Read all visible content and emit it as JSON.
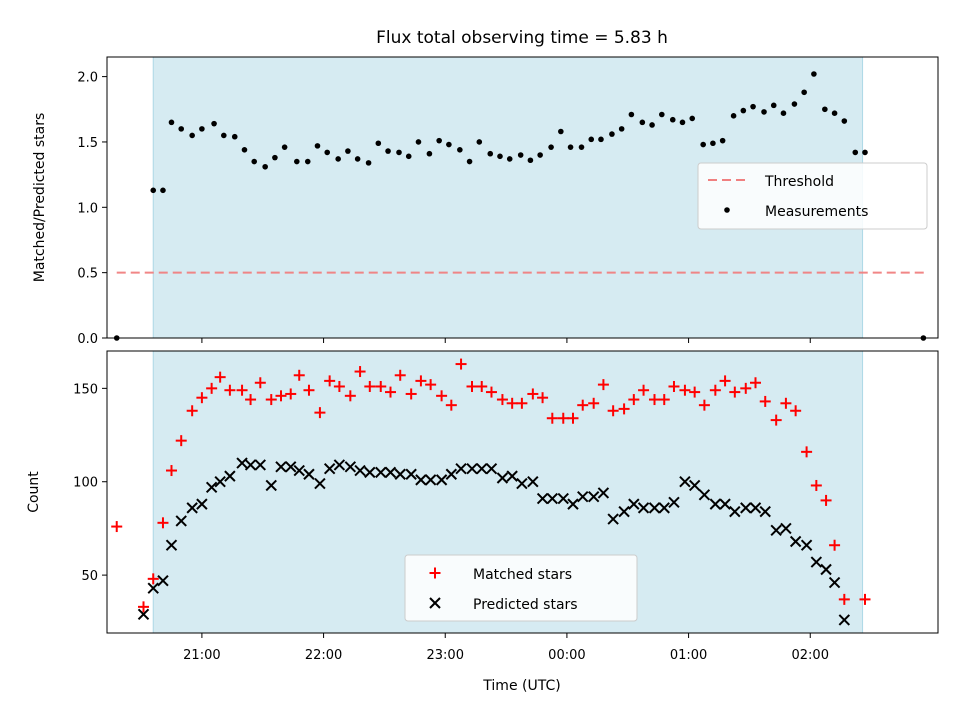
{
  "chart_data": {
    "title": "Flux total observing time = 5.83 h",
    "xlabel": "Time (UTC)",
    "x_tick_labels": [
      "21:00",
      "22:00",
      "23:00",
      "00:00",
      "01:00",
      "02:00"
    ],
    "x_tick_hours": [
      21,
      22,
      23,
      24,
      25,
      26
    ],
    "xlim": [
      20.22,
      27.05
    ],
    "observing_window": [
      20.6,
      26.43
    ],
    "colors": {
      "observing_window": "#add8e6",
      "threshold": "#f08080",
      "matched": "#ff0000",
      "predicted": "#000000",
      "measurements": "#000000"
    },
    "top": {
      "type": "scatter",
      "ylabel": "Matched/Predicted stars",
      "ylim": [
        0,
        2.15
      ],
      "y_ticks": [
        "0.0",
        "0.5",
        "1.0",
        "1.5",
        "2.0"
      ],
      "threshold": 0.5,
      "threshold_x": [
        20.3,
        26.95
      ],
      "legend_position": "center-right",
      "legend": [
        "Threshold",
        "Measurements"
      ],
      "measurements": [
        [
          20.3,
          0.0
        ],
        [
          20.6,
          1.13
        ],
        [
          20.68,
          1.13
        ],
        [
          20.75,
          1.65
        ],
        [
          20.83,
          1.6
        ],
        [
          20.92,
          1.55
        ],
        [
          21.0,
          1.6
        ],
        [
          21.1,
          1.64
        ],
        [
          21.18,
          1.55
        ],
        [
          21.27,
          1.54
        ],
        [
          21.35,
          1.44
        ],
        [
          21.43,
          1.35
        ],
        [
          21.52,
          1.31
        ],
        [
          21.6,
          1.38
        ],
        [
          21.68,
          1.46
        ],
        [
          21.78,
          1.35
        ],
        [
          21.87,
          1.35
        ],
        [
          21.95,
          1.47
        ],
        [
          22.03,
          1.42
        ],
        [
          22.12,
          1.37
        ],
        [
          22.2,
          1.43
        ],
        [
          22.28,
          1.37
        ],
        [
          22.37,
          1.34
        ],
        [
          22.45,
          1.49
        ],
        [
          22.53,
          1.43
        ],
        [
          22.62,
          1.42
        ],
        [
          22.7,
          1.39
        ],
        [
          22.78,
          1.5
        ],
        [
          22.87,
          1.41
        ],
        [
          22.95,
          1.51
        ],
        [
          23.03,
          1.48
        ],
        [
          23.12,
          1.44
        ],
        [
          23.2,
          1.35
        ],
        [
          23.28,
          1.5
        ],
        [
          23.37,
          1.41
        ],
        [
          23.45,
          1.39
        ],
        [
          23.53,
          1.37
        ],
        [
          23.62,
          1.4
        ],
        [
          23.7,
          1.36
        ],
        [
          23.78,
          1.4
        ],
        [
          23.87,
          1.46
        ],
        [
          23.95,
          1.58
        ],
        [
          24.03,
          1.46
        ],
        [
          24.12,
          1.46
        ],
        [
          24.2,
          1.52
        ],
        [
          24.28,
          1.52
        ],
        [
          24.37,
          1.56
        ],
        [
          24.45,
          1.6
        ],
        [
          24.53,
          1.71
        ],
        [
          24.62,
          1.65
        ],
        [
          24.7,
          1.63
        ],
        [
          24.78,
          1.71
        ],
        [
          24.87,
          1.67
        ],
        [
          24.95,
          1.65
        ],
        [
          25.03,
          1.68
        ],
        [
          25.12,
          1.48
        ],
        [
          25.2,
          1.49
        ],
        [
          25.28,
          1.51
        ],
        [
          25.37,
          1.7
        ],
        [
          25.45,
          1.74
        ],
        [
          25.53,
          1.77
        ],
        [
          25.62,
          1.73
        ],
        [
          25.7,
          1.78
        ],
        [
          25.78,
          1.72
        ],
        [
          25.87,
          1.79
        ],
        [
          25.95,
          1.88
        ],
        [
          26.03,
          2.02
        ],
        [
          26.12,
          1.75
        ],
        [
          26.2,
          1.72
        ],
        [
          26.28,
          1.66
        ],
        [
          26.37,
          1.42
        ],
        [
          26.45,
          1.42
        ],
        [
          26.93,
          0.0
        ]
      ]
    },
    "bottom": {
      "type": "scatter",
      "ylabel": "Count",
      "ylim": [
        19,
        170
      ],
      "y_ticks": [
        "50",
        "100",
        "150"
      ],
      "legend_position": "lower-center",
      "legend": [
        "Matched stars",
        "Predicted stars"
      ],
      "matched": [
        [
          20.3,
          76
        ],
        [
          20.52,
          33
        ],
        [
          20.6,
          48
        ],
        [
          20.68,
          78
        ],
        [
          20.75,
          106
        ],
        [
          20.83,
          122
        ],
        [
          20.92,
          138
        ],
        [
          21.0,
          145
        ],
        [
          21.08,
          150
        ],
        [
          21.15,
          156
        ],
        [
          21.23,
          149
        ],
        [
          21.33,
          149
        ],
        [
          21.4,
          144
        ],
        [
          21.48,
          153
        ],
        [
          21.57,
          144
        ],
        [
          21.65,
          146
        ],
        [
          21.73,
          147
        ],
        [
          21.8,
          157
        ],
        [
          21.88,
          149
        ],
        [
          21.97,
          137
        ],
        [
          22.05,
          154
        ],
        [
          22.13,
          151
        ],
        [
          22.22,
          146
        ],
        [
          22.3,
          159
        ],
        [
          22.38,
          151
        ],
        [
          22.47,
          151
        ],
        [
          22.55,
          148
        ],
        [
          22.63,
          157
        ],
        [
          22.72,
          147
        ],
        [
          22.8,
          154
        ],
        [
          22.88,
          152
        ],
        [
          22.97,
          146
        ],
        [
          23.05,
          141
        ],
        [
          23.13,
          163
        ],
        [
          23.22,
          151
        ],
        [
          23.3,
          151
        ],
        [
          23.38,
          148
        ],
        [
          23.47,
          144
        ],
        [
          23.55,
          142
        ],
        [
          23.63,
          142
        ],
        [
          23.72,
          147
        ],
        [
          23.8,
          145
        ],
        [
          23.88,
          134
        ],
        [
          23.97,
          134
        ],
        [
          24.05,
          134
        ],
        [
          24.13,
          141
        ],
        [
          24.22,
          142
        ],
        [
          24.3,
          152
        ],
        [
          24.38,
          138
        ],
        [
          24.47,
          139
        ],
        [
          24.55,
          144
        ],
        [
          24.63,
          149
        ],
        [
          24.72,
          144
        ],
        [
          24.8,
          144
        ],
        [
          24.88,
          151
        ],
        [
          24.97,
          149
        ],
        [
          25.05,
          148
        ],
        [
          25.13,
          141
        ],
        [
          25.22,
          149
        ],
        [
          25.3,
          154
        ],
        [
          25.38,
          148
        ],
        [
          25.47,
          150
        ],
        [
          25.55,
          153
        ],
        [
          25.63,
          143
        ],
        [
          25.72,
          133
        ],
        [
          25.8,
          142
        ],
        [
          25.88,
          138
        ],
        [
          25.97,
          116
        ],
        [
          26.05,
          98
        ],
        [
          26.13,
          90
        ],
        [
          26.2,
          66
        ],
        [
          26.28,
          37
        ],
        [
          26.45,
          37
        ]
      ],
      "predicted": [
        [
          20.52,
          29
        ],
        [
          20.6,
          43
        ],
        [
          20.68,
          47
        ],
        [
          20.75,
          66
        ],
        [
          20.83,
          79
        ],
        [
          20.92,
          86
        ],
        [
          21.0,
          88
        ],
        [
          21.08,
          97
        ],
        [
          21.15,
          100
        ],
        [
          21.23,
          103
        ],
        [
          21.33,
          110
        ],
        [
          21.4,
          109
        ],
        [
          21.48,
          109
        ],
        [
          21.57,
          98
        ],
        [
          21.65,
          108
        ],
        [
          21.73,
          108
        ],
        [
          21.8,
          106
        ],
        [
          21.88,
          104
        ],
        [
          21.97,
          99
        ],
        [
          22.05,
          107
        ],
        [
          22.13,
          109
        ],
        [
          22.22,
          108
        ],
        [
          22.3,
          106
        ],
        [
          22.38,
          105
        ],
        [
          22.47,
          105
        ],
        [
          22.55,
          105
        ],
        [
          22.63,
          104
        ],
        [
          22.72,
          104
        ],
        [
          22.8,
          101
        ],
        [
          22.88,
          101
        ],
        [
          22.97,
          101
        ],
        [
          23.05,
          104
        ],
        [
          23.13,
          107
        ],
        [
          23.22,
          107
        ],
        [
          23.3,
          107
        ],
        [
          23.38,
          107
        ],
        [
          23.47,
          102
        ],
        [
          23.55,
          103
        ],
        [
          23.63,
          99
        ],
        [
          23.72,
          100
        ],
        [
          23.8,
          91
        ],
        [
          23.88,
          91
        ],
        [
          23.97,
          91
        ],
        [
          24.05,
          88
        ],
        [
          24.13,
          92
        ],
        [
          24.22,
          92
        ],
        [
          24.3,
          94
        ],
        [
          24.38,
          80
        ],
        [
          24.47,
          84
        ],
        [
          24.55,
          88
        ],
        [
          24.63,
          86
        ],
        [
          24.72,
          86
        ],
        [
          24.8,
          86
        ],
        [
          24.88,
          89
        ],
        [
          24.97,
          100
        ],
        [
          25.05,
          98
        ],
        [
          25.13,
          93
        ],
        [
          25.22,
          88
        ],
        [
          25.3,
          88
        ],
        [
          25.38,
          84
        ],
        [
          25.47,
          86
        ],
        [
          25.55,
          86
        ],
        [
          25.63,
          84
        ],
        [
          25.72,
          74
        ],
        [
          25.8,
          75
        ],
        [
          25.88,
          68
        ],
        [
          25.97,
          66
        ],
        [
          26.05,
          57
        ],
        [
          26.13,
          53
        ],
        [
          26.2,
          46
        ],
        [
          26.28,
          26
        ]
      ]
    }
  }
}
